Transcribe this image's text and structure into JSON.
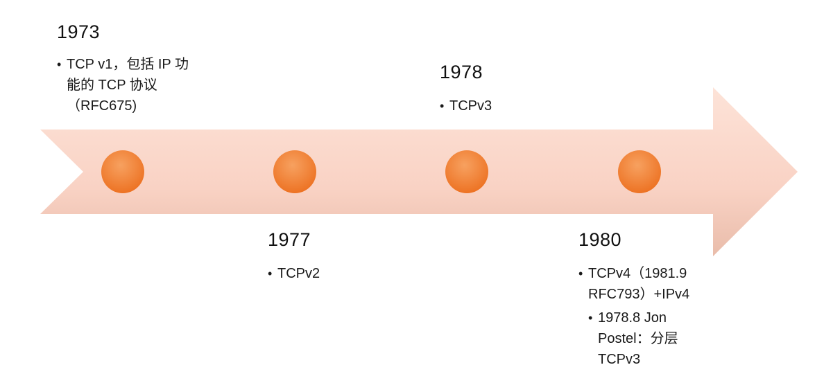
{
  "timeline": {
    "milestones": [
      {
        "year": "1973",
        "bullets": [
          "TCP v1，包括 IP 功能的 TCP 协议（RFC675)"
        ]
      },
      {
        "year": "1977",
        "bullets": [
          "TCPv2"
        ]
      },
      {
        "year": "1978",
        "bullets": [
          "TCPv3"
        ]
      },
      {
        "year": "1980",
        "bullets": [
          "TCPv4（1981.9 RFC793）+IPv4",
          "1978.8 Jon Postel：分层 TCPv3"
        ]
      }
    ]
  },
  "colors": {
    "arrow_light": "#fbdcd0",
    "arrow_shadow": "#e6b8a8",
    "dot": "#ef7a2c",
    "dot_highlight": "#f59a5c"
  }
}
